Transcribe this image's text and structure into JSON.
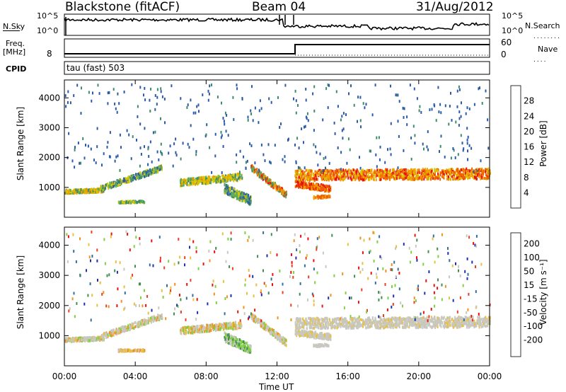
{
  "header": {
    "station": "Blackstone (fitACF)",
    "beam": "Beam 04",
    "date": "31/Aug/2012"
  },
  "strip_panels": {
    "noise": {
      "left_label": "N.Sky",
      "right_label": "N.Search",
      "y_ticks": [
        "10^5",
        "10^0"
      ]
    },
    "freq": {
      "left_label_1": "Freq.",
      "left_label_2": "[MHz]",
      "left_tick": "8",
      "right_label": "Nave",
      "right_ticks": [
        "60",
        "0"
      ]
    },
    "cpid": {
      "left_label": "CPID",
      "program": "tau (fast) 503"
    }
  },
  "chart_data": [
    {
      "type": "heatmap",
      "panel": "power",
      "ylabel": "Slant Range [km]",
      "ylim": [
        0,
        4600
      ],
      "y_ticks": [
        1000,
        2000,
        3000,
        4000
      ],
      "xlim": [
        0,
        24
      ],
      "x_ticks": [
        "00:00",
        "04:00",
        "08:00",
        "12:00",
        "16:00",
        "20:00",
        "00:00"
      ],
      "colorbar": {
        "label": "Power [dB]",
        "ticks": [
          "4",
          "8",
          "12",
          "16",
          "20",
          "24",
          "28"
        ],
        "colors": [
          "#1f1fd8",
          "#2a5aa8",
          "#3f8a6a",
          "#5fae5a",
          "#d8c800",
          "#f0a000",
          "#f06000",
          "#e81010"
        ]
      }
    },
    {
      "type": "heatmap",
      "panel": "velocity",
      "ylabel": "Slant Range [km]",
      "ylim": [
        0,
        4600
      ],
      "y_ticks": [
        1000,
        2000,
        3000,
        4000
      ],
      "xlim": [
        0,
        24
      ],
      "x_ticks": [
        "00:00",
        "04:00",
        "08:00",
        "12:00",
        "16:00",
        "20:00",
        "00:00"
      ],
      "xlabel": "Time UT",
      "colorbar": {
        "label": "Velocity [m s⁻¹]",
        "ticks": [
          "200",
          "100",
          "50",
          "15",
          "-15",
          "-50",
          "-100",
          "-200"
        ],
        "colors": [
          "#1f2fb0",
          "#2f6f9f",
          "#3f8f4f",
          "#7fcf3f",
          "#c8c8c0",
          "#e8c040",
          "#f09020",
          "#e84020",
          "#e81010"
        ]
      }
    }
  ]
}
